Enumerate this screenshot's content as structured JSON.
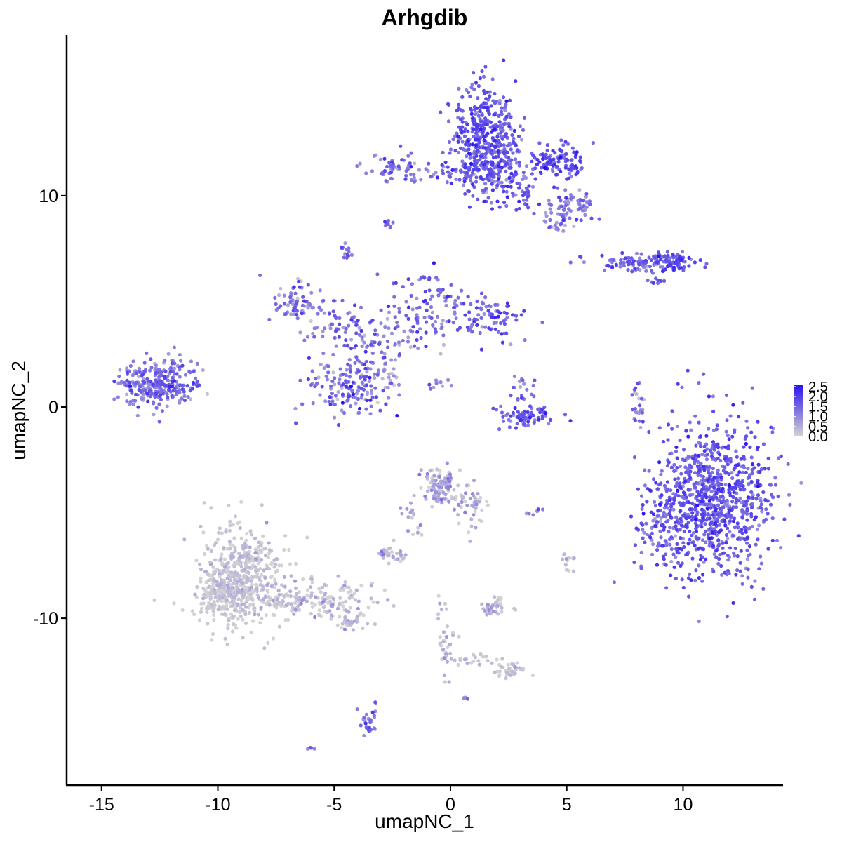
{
  "chart_data": {
    "type": "scatter",
    "title": "Arhgdib",
    "xlabel": "umapNC_1",
    "ylabel": "umapNC_2",
    "xlim": [
      -16.5,
      14.3
    ],
    "ylim": [
      -17.9,
      17.6
    ],
    "x_ticks": [
      -15,
      -10,
      -5,
      0,
      5,
      10
    ],
    "y_ticks": [
      -10,
      0,
      10
    ],
    "x_tick_labels": [
      "-15",
      "-10",
      "-5",
      "0",
      "5",
      "10"
    ],
    "y_tick_labels": [
      "-10",
      "0",
      "10"
    ],
    "color_low": "#d3d3d3",
    "color_high": "#2a12f0",
    "legend": {
      "title": "",
      "position": "right",
      "breaks": [
        "2.5",
        "2.0",
        "1.5",
        "1.0",
        "0.5",
        "0.0"
      ],
      "range": [
        0,
        2.6
      ]
    },
    "clusters": [
      {
        "cx": 11.3,
        "cy": -4.4,
        "sx": 1.25,
        "sy": 1.9,
        "n": 900,
        "mean": 1.6,
        "sd": 0.35
      },
      {
        "cx": 9.0,
        "cy": -5.5,
        "sx": 0.5,
        "sy": 1.0,
        "n": 80,
        "mean": 1.4,
        "sd": 0.4
      },
      {
        "cx": -9.0,
        "cy": -8.0,
        "sx": 0.9,
        "sy": 1.3,
        "n": 420,
        "mean": 0.1,
        "sd": 0.25
      },
      {
        "cx": -9.7,
        "cy": -8.9,
        "sx": 0.6,
        "sy": 0.7,
        "n": 200,
        "mean": 0.05,
        "sd": 0.2
      },
      {
        "cx": -6.0,
        "cy": -9.1,
        "sx": 1.4,
        "sy": 0.45,
        "n": 180,
        "mean": 0.2,
        "sd": 0.35
      },
      {
        "cx": -4.2,
        "cy": -10.1,
        "sx": 0.35,
        "sy": 0.25,
        "n": 30,
        "mean": 0.25,
        "sd": 0.3
      },
      {
        "cx": 1.4,
        "cy": 12.8,
        "sx": 0.7,
        "sy": 1.2,
        "n": 380,
        "mean": 1.6,
        "sd": 0.35
      },
      {
        "cx": 2.2,
        "cy": 11.3,
        "sx": 0.9,
        "sy": 0.9,
        "n": 180,
        "mean": 1.5,
        "sd": 0.4
      },
      {
        "cx": 4.6,
        "cy": 11.6,
        "sx": 0.6,
        "sy": 0.4,
        "n": 100,
        "mean": 1.8,
        "sd": 0.35
      },
      {
        "cx": 5.2,
        "cy": 9.5,
        "sx": 0.5,
        "sy": 0.4,
        "n": 70,
        "mean": 1.3,
        "sd": 0.4
      },
      {
        "cx": 4.6,
        "cy": 8.8,
        "sx": 0.3,
        "sy": 0.3,
        "n": 20,
        "mean": 1.0,
        "sd": 0.4
      },
      {
        "cx": -2.4,
        "cy": 11.3,
        "sx": 0.6,
        "sy": 0.35,
        "n": 60,
        "mean": 1.4,
        "sd": 0.4
      },
      {
        "cx": -0.3,
        "cy": 11.1,
        "sx": 0.5,
        "sy": 0.2,
        "n": 22,
        "mean": 1.3,
        "sd": 0.4
      },
      {
        "cx": 3.2,
        "cy": 10.0,
        "sx": 0.25,
        "sy": 0.2,
        "n": 12,
        "mean": 1.7,
        "sd": 0.3
      },
      {
        "cx": -2.7,
        "cy": 8.6,
        "sx": 0.15,
        "sy": 0.15,
        "n": 10,
        "mean": 1.3,
        "sd": 0.3
      },
      {
        "cx": -4.5,
        "cy": 7.4,
        "sx": 0.15,
        "sy": 0.15,
        "n": 14,
        "mean": 1.4,
        "sd": 0.3
      },
      {
        "cx": -12.8,
        "cy": 1.0,
        "sx": 0.75,
        "sy": 0.5,
        "n": 260,
        "mean": 1.3,
        "sd": 0.45
      },
      {
        "cx": -11.8,
        "cy": 1.6,
        "sx": 0.5,
        "sy": 0.5,
        "n": 40,
        "mean": 1.2,
        "sd": 0.5
      },
      {
        "cx": -6.4,
        "cy": 5.0,
        "sx": 0.6,
        "sy": 0.5,
        "n": 70,
        "mean": 1.1,
        "sd": 0.5
      },
      {
        "cx": -5.0,
        "cy": 3.8,
        "sx": 0.8,
        "sy": 0.5,
        "n": 60,
        "mean": 1.2,
        "sd": 0.5
      },
      {
        "cx": -4.3,
        "cy": 0.9,
        "sx": 0.9,
        "sy": 0.7,
        "n": 150,
        "mean": 1.3,
        "sd": 0.5
      },
      {
        "cx": -3.1,
        "cy": 3.2,
        "sx": 0.9,
        "sy": 0.8,
        "n": 70,
        "mean": 1.2,
        "sd": 0.5
      },
      {
        "cx": -1.1,
        "cy": 4.7,
        "sx": 0.8,
        "sy": 0.9,
        "n": 90,
        "mean": 1.4,
        "sd": 0.4
      },
      {
        "cx": 1.6,
        "cy": 4.2,
        "sx": 0.8,
        "sy": 0.5,
        "n": 90,
        "mean": 1.5,
        "sd": 0.4
      },
      {
        "cx": -2.6,
        "cy": 1.4,
        "sx": 0.3,
        "sy": 0.4,
        "n": 20,
        "mean": 1.0,
        "sd": 0.5
      },
      {
        "cx": 3.3,
        "cy": -0.5,
        "sx": 0.6,
        "sy": 0.3,
        "n": 80,
        "mean": 1.5,
        "sd": 0.4
      },
      {
        "cx": 3.1,
        "cy": 0.8,
        "sx": 0.3,
        "sy": 0.5,
        "n": 20,
        "mean": 1.2,
        "sd": 0.5
      },
      {
        "cx": 8.2,
        "cy": 6.8,
        "sx": 1.2,
        "sy": 0.2,
        "n": 110,
        "mean": 1.4,
        "sd": 0.4
      },
      {
        "cx": 9.6,
        "cy": 6.9,
        "sx": 0.4,
        "sy": 0.2,
        "n": 50,
        "mean": 1.7,
        "sd": 0.35
      },
      {
        "cx": 8.8,
        "cy": 6.0,
        "sx": 0.2,
        "sy": 0.2,
        "n": 10,
        "mean": 1.5,
        "sd": 0.3
      },
      {
        "cx": 8.1,
        "cy": 0.2,
        "sx": 0.2,
        "sy": 0.6,
        "n": 25,
        "mean": 1.0,
        "sd": 0.5
      },
      {
        "cx": -0.5,
        "cy": -3.8,
        "sx": 0.4,
        "sy": 0.5,
        "n": 110,
        "mean": 0.35,
        "sd": 0.45
      },
      {
        "cx": 0.9,
        "cy": -4.6,
        "sx": 0.3,
        "sy": 0.6,
        "n": 40,
        "mean": 0.3,
        "sd": 0.45
      },
      {
        "cx": -2.5,
        "cy": -6.9,
        "sx": 0.35,
        "sy": 0.2,
        "n": 35,
        "mean": 0.3,
        "sd": 0.4
      },
      {
        "cx": -1.7,
        "cy": -5.5,
        "sx": 0.3,
        "sy": 0.6,
        "n": 15,
        "mean": 0.4,
        "sd": 0.4
      },
      {
        "cx": 2.0,
        "cy": -9.5,
        "sx": 0.35,
        "sy": 0.25,
        "n": 40,
        "mean": 0.2,
        "sd": 0.35
      },
      {
        "cx": 2.5,
        "cy": -12.4,
        "sx": 0.35,
        "sy": 0.2,
        "n": 40,
        "mean": 0.1,
        "sd": 0.25
      },
      {
        "cx": -0.1,
        "cy": -11.5,
        "sx": 0.2,
        "sy": 0.6,
        "n": 30,
        "mean": 0.2,
        "sd": 0.35
      },
      {
        "cx": 0.9,
        "cy": -12.0,
        "sx": 0.6,
        "sy": 0.2,
        "n": 20,
        "mean": 0.1,
        "sd": 0.25
      },
      {
        "cx": -0.4,
        "cy": -9.6,
        "sx": 0.1,
        "sy": 0.3,
        "n": 8,
        "mean": 0.4,
        "sd": 0.4
      },
      {
        "cx": -3.5,
        "cy": -14.8,
        "sx": 0.2,
        "sy": 0.5,
        "n": 30,
        "mean": 1.2,
        "sd": 0.4
      },
      {
        "cx": 5.0,
        "cy": -7.4,
        "sx": 0.15,
        "sy": 0.3,
        "n": 12,
        "mean": 0.1,
        "sd": 0.2
      },
      {
        "cx": 3.5,
        "cy": -5.0,
        "sx": 0.2,
        "sy": 0.1,
        "n": 8,
        "mean": 0.8,
        "sd": 0.5
      },
      {
        "cx": 0.6,
        "cy": -13.8,
        "sx": 0.08,
        "sy": 0.08,
        "n": 4,
        "mean": 1.2,
        "sd": 0.3
      },
      {
        "cx": -6.0,
        "cy": -16.2,
        "sx": 0.08,
        "sy": 0.08,
        "n": 4,
        "mean": 1.2,
        "sd": 0.3
      },
      {
        "cx": -0.7,
        "cy": 1.0,
        "sx": 0.3,
        "sy": 0.2,
        "n": 10,
        "mean": 1.0,
        "sd": 0.4
      }
    ]
  }
}
